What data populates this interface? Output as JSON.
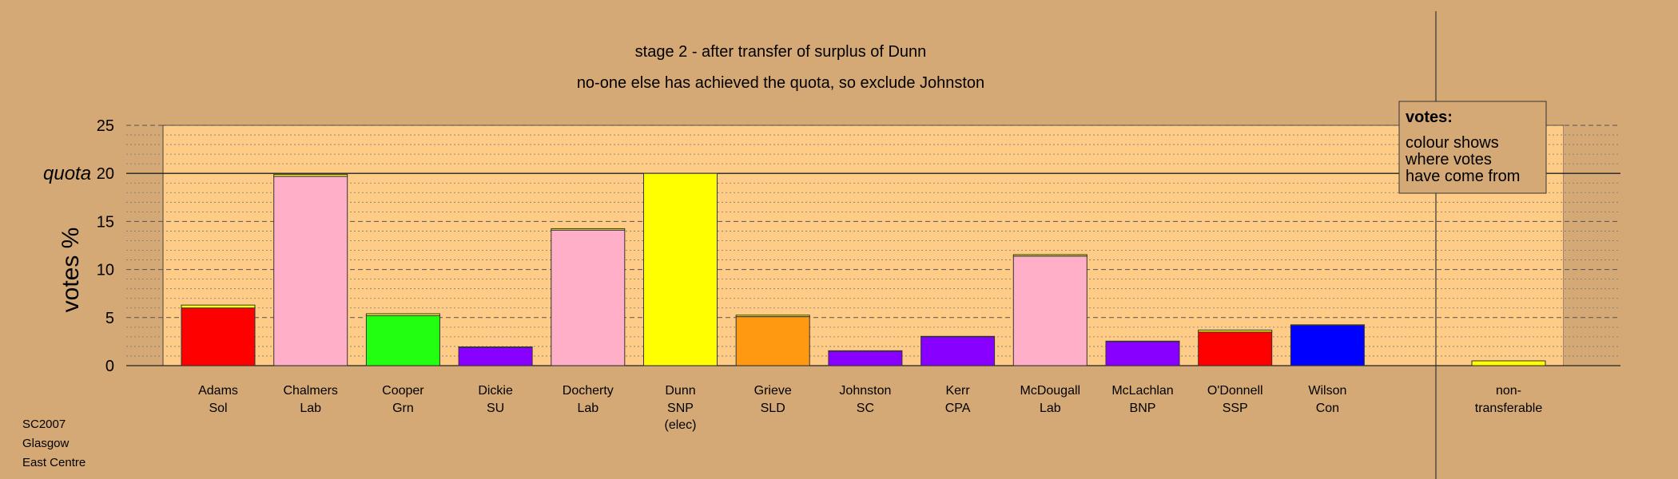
{
  "chart_data": {
    "type": "bar",
    "stacked": true,
    "title": "stage 2 - after transfer of surplus of Dunn",
    "subtitle": "no-one else has achieved the quota, so exclude Johnston",
    "ylabel": "votes %",
    "ylim": [
      0,
      25
    ],
    "yticks": [
      0,
      5,
      10,
      15,
      20,
      25
    ],
    "quota": 20,
    "quota_label": "quota",
    "grid": true,
    "candidates": [
      {
        "name": "Adams",
        "party": "Sol",
        "segments": [
          {
            "value": 6.0,
            "color": "#ff0000"
          },
          {
            "value": 0.3,
            "color": "#ffff00"
          }
        ]
      },
      {
        "name": "Chalmers",
        "party": "Lab",
        "segments": [
          {
            "value": 19.7,
            "color": "#ffb0c8"
          },
          {
            "value": 0.2,
            "color": "#ffff00"
          }
        ]
      },
      {
        "name": "Cooper",
        "party": "Grn",
        "segments": [
          {
            "value": 5.2,
            "color": "#22ff11"
          },
          {
            "value": 0.2,
            "color": "#ffff00"
          }
        ]
      },
      {
        "name": "Dickie",
        "party": "SU",
        "segments": [
          {
            "value": 1.9,
            "color": "#8800ff"
          },
          {
            "value": 0.05,
            "color": "#ffff00"
          }
        ]
      },
      {
        "name": "Docherty",
        "party": "Lab",
        "segments": [
          {
            "value": 14.1,
            "color": "#ffb0c8"
          },
          {
            "value": 0.15,
            "color": "#ffff00"
          }
        ]
      },
      {
        "name": "Dunn",
        "party": "SNP",
        "note": "(elec)",
        "segments": [
          {
            "value": 20.0,
            "color": "#ffff00"
          }
        ]
      },
      {
        "name": "Grieve",
        "party": "SLD",
        "segments": [
          {
            "value": 5.1,
            "color": "#ff9911"
          },
          {
            "value": 0.15,
            "color": "#ffff00"
          }
        ]
      },
      {
        "name": "Johnston",
        "party": "SC",
        "segments": [
          {
            "value": 1.5,
            "color": "#8800ff"
          },
          {
            "value": 0.05,
            "color": "#ffff00"
          }
        ]
      },
      {
        "name": "Kerr",
        "party": "CPA",
        "segments": [
          {
            "value": 3.0,
            "color": "#8800ff"
          },
          {
            "value": 0.05,
            "color": "#ffff00"
          }
        ]
      },
      {
        "name": "McDougall",
        "party": "Lab",
        "segments": [
          {
            "value": 11.4,
            "color": "#ffb0c8"
          },
          {
            "value": 0.15,
            "color": "#ffff00"
          }
        ]
      },
      {
        "name": "McLachlan",
        "party": "BNP",
        "segments": [
          {
            "value": 2.5,
            "color": "#8800ff"
          },
          {
            "value": 0.05,
            "color": "#ffff00"
          }
        ]
      },
      {
        "name": "O'Donnell",
        "party": "SSP",
        "segments": [
          {
            "value": 3.5,
            "color": "#ff0000"
          },
          {
            "value": 0.2,
            "color": "#ffff00"
          }
        ]
      },
      {
        "name": "Wilson",
        "party": "Con",
        "segments": [
          {
            "value": 4.2,
            "color": "#0000ff"
          },
          {
            "value": 0.05,
            "color": "#ffff00"
          }
        ]
      }
    ],
    "nontransferable": {
      "label_line1": "non-",
      "label_line2": "transferable",
      "value": 0.5,
      "color": "#ffff00"
    },
    "legend": {
      "title": "votes:",
      "lines": [
        "colour shows",
        "where votes",
        "have come from"
      ],
      "placement": "top-right"
    },
    "footer": [
      "SC2007",
      "Glasgow",
      "East Centre"
    ]
  }
}
